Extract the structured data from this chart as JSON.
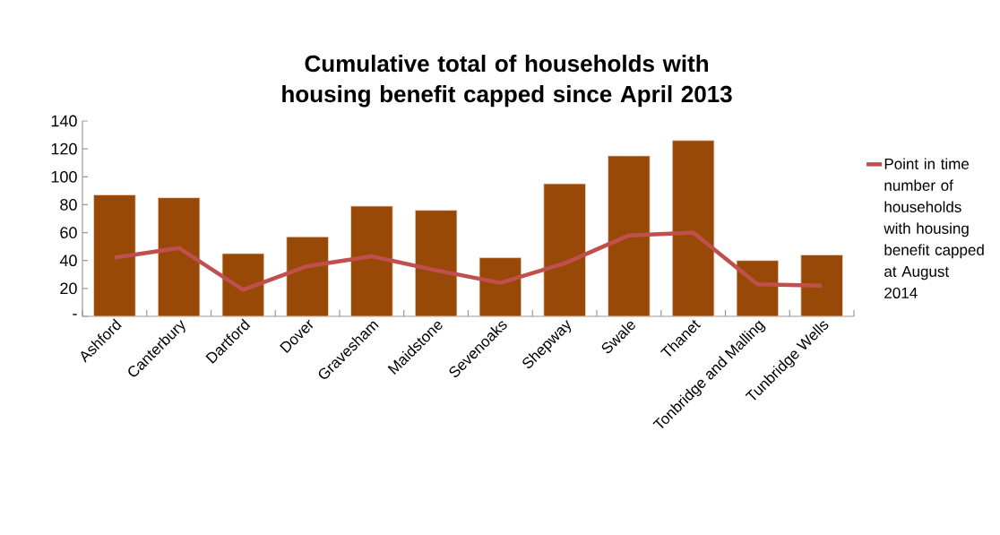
{
  "chart_data": {
    "type": "bar",
    "title": "Cumulative total of households with housing benefit capped since April 2013",
    "categories": [
      "Ashford",
      "Canterbury",
      "Dartford",
      "Dover",
      "Gravesham",
      "Maidstone",
      "Sevenoaks",
      "Shepway",
      "Swale",
      "Thanet",
      "Tonbridge and Malling",
      "Tunbridge Wells"
    ],
    "series": [
      {
        "color": "#984807",
        "values": [
          87,
          85,
          45,
          57,
          79,
          76,
          42,
          95,
          115,
          126,
          40,
          44
        ]
      },
      {
        "type": "line",
        "name": "Point in time number of households with housing benefit capped at August 2014",
        "color": "#c0504d",
        "values": [
          42,
          49,
          19,
          36,
          43,
          33,
          24,
          38,
          58,
          60,
          23,
          22
        ]
      }
    ],
    "ylim": [
      0,
      140
    ],
    "yticks": [
      {
        "value": 0,
        "label": "-"
      },
      20,
      40,
      60,
      80,
      100,
      120,
      140
    ],
    "legend": "right"
  }
}
